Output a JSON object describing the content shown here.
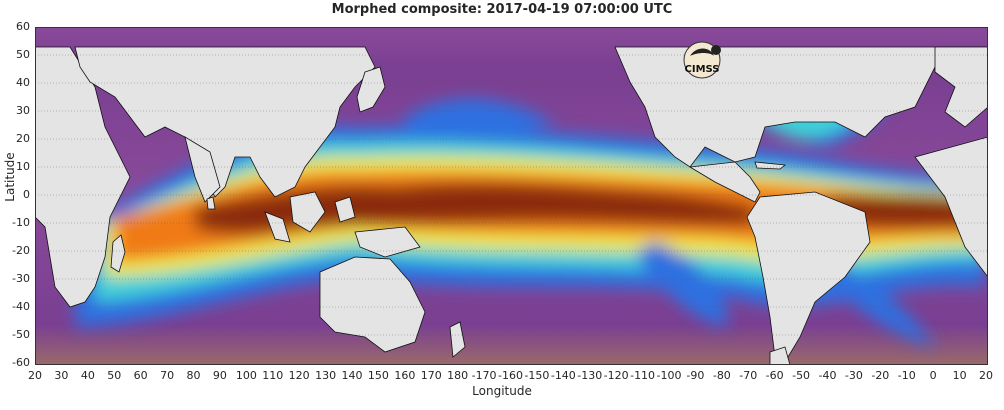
{
  "title": "Morphed composite: 2017-04-19 07:00:00 UTC",
  "xlabel": "Longitude",
  "ylabel": "Latitude",
  "y_ticks": [
    "60",
    "50",
    "40",
    "30",
    "20",
    "10",
    "0",
    "-10",
    "-20",
    "-30",
    "-40",
    "-50",
    "-60"
  ],
  "x_ticks": [
    "20",
    "30",
    "40",
    "50",
    "60",
    "70",
    "80",
    "90",
    "100",
    "110",
    "120",
    "130",
    "140",
    "150",
    "160",
    "170",
    "180",
    "-170",
    "-160",
    "-150",
    "-140",
    "-130",
    "-120",
    "-110",
    "-100",
    "-90",
    "-80",
    "-70",
    "-60",
    "-50",
    "-40",
    "-30",
    "-20",
    "-10",
    "0",
    "10",
    "20"
  ],
  "logo_text": "CIMSS",
  "colors": {
    "land": "#e4e4e4",
    "dry": "#8a4a9a",
    "low": "#2e6fe0",
    "mid": "#3fd0d8",
    "midhigh": "#f0e84a",
    "high": "#f07a18",
    "max": "#8a2a0a"
  }
}
